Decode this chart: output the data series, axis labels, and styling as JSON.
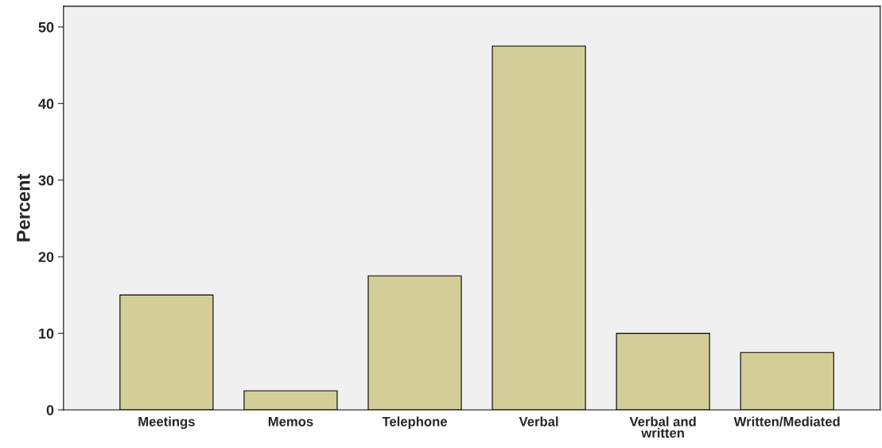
{
  "chart_data": {
    "type": "bar",
    "ylabel": "Percent",
    "categories": [
      "Meetings",
      "Memos",
      "Telephone",
      "Verbal",
      "Verbal and\nwritten",
      "Written/Mediated"
    ],
    "values": [
      15,
      2.5,
      17.5,
      47.5,
      10,
      7.5
    ],
    "color": "#d3ce97",
    "ylim": [
      0,
      52.7
    ],
    "yticks": [
      0,
      10,
      20,
      30,
      40,
      50
    ],
    "grid": false,
    "legend": false
  }
}
